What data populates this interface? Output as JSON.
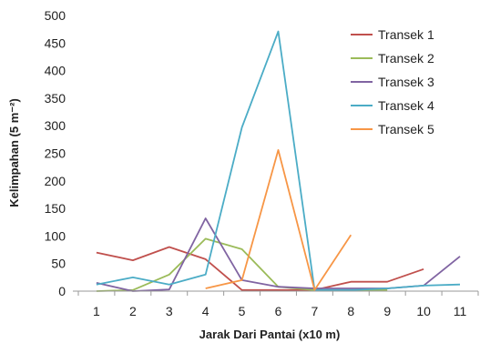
{
  "chart_data": {
    "type": "line",
    "title": "",
    "xlabel": "Jarak Dari Pantai (x10 m)",
    "ylabel": "Kelimpahan (5 m⁻²)",
    "x": [
      1,
      2,
      3,
      4,
      5,
      6,
      7,
      8,
      9,
      10,
      11
    ],
    "x_ticks": [
      "1",
      "2",
      "3",
      "4",
      "5",
      "6",
      "7",
      "8",
      "9",
      "10",
      "11"
    ],
    "xlim": [
      0.35,
      11.5
    ],
    "ylim": [
      0,
      500
    ],
    "y_ticks": [
      0,
      50,
      100,
      150,
      200,
      250,
      300,
      350,
      400,
      450,
      500
    ],
    "legend_position": "top-right",
    "grid": false,
    "series": [
      {
        "name": "Transek 1",
        "color": "#c0504d",
        "values": [
          70,
          56,
          80,
          58,
          2,
          2,
          2,
          17,
          17,
          40,
          null
        ]
      },
      {
        "name": "Transek 2",
        "color": "#9bbb59",
        "values": [
          0,
          2,
          30,
          95,
          76,
          8,
          2,
          2,
          2,
          null,
          null
        ]
      },
      {
        "name": "Transek 3",
        "color": "#8064a2",
        "values": [
          15,
          0,
          3,
          132,
          20,
          8,
          5,
          5,
          5,
          10,
          63
        ]
      },
      {
        "name": "Transek 4",
        "color": "#4bacc6",
        "values": [
          12,
          25,
          12,
          30,
          297,
          471,
          2,
          2,
          5,
          10,
          12
        ]
      },
      {
        "name": "Transek 5",
        "color": "#f79646",
        "values": [
          null,
          null,
          null,
          5,
          20,
          256,
          2,
          102,
          null,
          null,
          null
        ]
      }
    ]
  }
}
